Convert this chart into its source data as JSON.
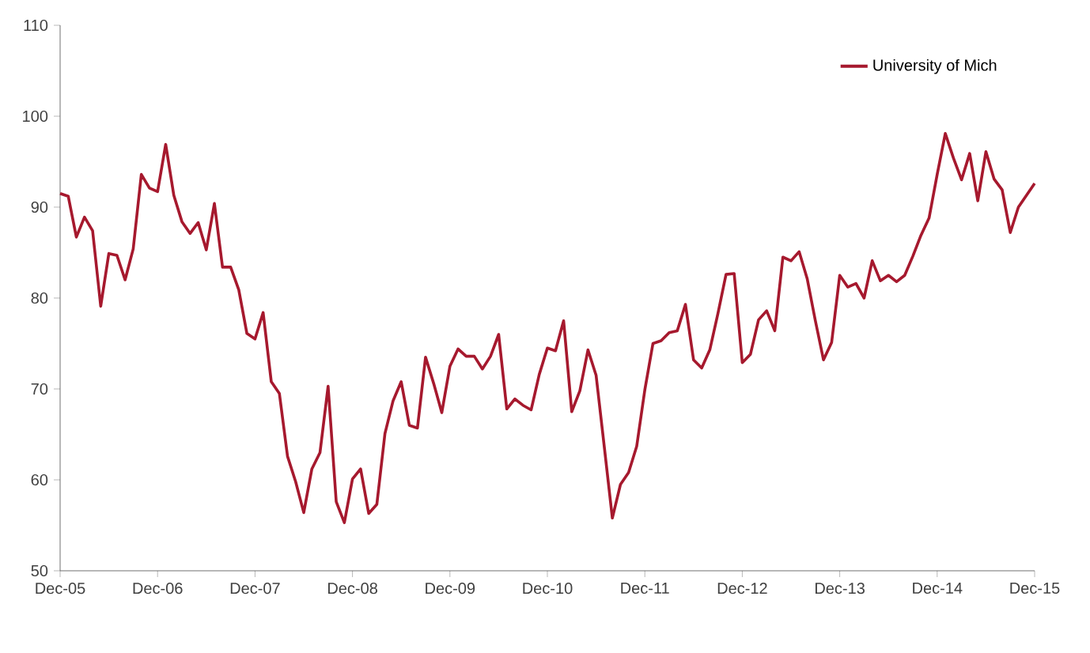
{
  "chart_data": {
    "type": "line",
    "x": [
      "2005-12",
      "2006-01",
      "2006-02",
      "2006-03",
      "2006-04",
      "2006-05",
      "2006-06",
      "2006-07",
      "2006-08",
      "2006-09",
      "2006-10",
      "2006-11",
      "2006-12",
      "2007-01",
      "2007-02",
      "2007-03",
      "2007-04",
      "2007-05",
      "2007-06",
      "2007-07",
      "2007-08",
      "2007-09",
      "2007-10",
      "2007-11",
      "2007-12",
      "2008-01",
      "2008-02",
      "2008-03",
      "2008-04",
      "2008-05",
      "2008-06",
      "2008-07",
      "2008-08",
      "2008-09",
      "2008-10",
      "2008-11",
      "2008-12",
      "2009-01",
      "2009-02",
      "2009-03",
      "2009-04",
      "2009-05",
      "2009-06",
      "2009-07",
      "2009-08",
      "2009-09",
      "2009-10",
      "2009-11",
      "2009-12",
      "2010-01",
      "2010-02",
      "2010-03",
      "2010-04",
      "2010-05",
      "2010-06",
      "2010-07",
      "2010-08",
      "2010-09",
      "2010-10",
      "2010-11",
      "2010-12",
      "2011-01",
      "2011-02",
      "2011-03",
      "2011-04",
      "2011-05",
      "2011-06",
      "2011-07",
      "2011-08",
      "2011-09",
      "2011-10",
      "2011-11",
      "2011-12",
      "2012-01",
      "2012-02",
      "2012-03",
      "2012-04",
      "2012-05",
      "2012-06",
      "2012-07",
      "2012-08",
      "2012-09",
      "2012-10",
      "2012-11",
      "2012-12",
      "2013-01",
      "2013-02",
      "2013-03",
      "2013-04",
      "2013-05",
      "2013-06",
      "2013-07",
      "2013-08",
      "2013-09",
      "2013-10",
      "2013-11",
      "2013-12",
      "2014-01",
      "2014-02",
      "2014-03",
      "2014-04",
      "2014-05",
      "2014-06",
      "2014-07",
      "2014-08",
      "2014-09",
      "2014-10",
      "2014-11",
      "2014-12",
      "2015-01",
      "2015-02",
      "2015-03",
      "2015-04",
      "2015-05",
      "2015-06",
      "2015-07",
      "2015-08",
      "2015-09",
      "2015-10",
      "2015-11",
      "2015-12"
    ],
    "series": [
      {
        "name": "University of Mich",
        "color": "#a6192e",
        "values": [
          91.5,
          91.2,
          86.7,
          88.9,
          87.4,
          79.1,
          84.9,
          84.7,
          82.0,
          85.4,
          93.6,
          92.1,
          91.7,
          96.9,
          91.3,
          88.4,
          87.1,
          88.3,
          85.3,
          90.4,
          83.4,
          83.4,
          80.9,
          76.1,
          75.5,
          78.4,
          70.8,
          69.5,
          62.6,
          59.8,
          56.4,
          61.2,
          63.0,
          70.3,
          57.6,
          55.3,
          60.1,
          61.2,
          56.3,
          57.3,
          65.1,
          68.7,
          70.8,
          66.0,
          65.7,
          73.5,
          70.6,
          67.4,
          72.5,
          74.4,
          73.6,
          73.6,
          72.2,
          73.6,
          76.0,
          67.8,
          68.9,
          68.2,
          67.7,
          71.6,
          74.5,
          74.2,
          77.5,
          67.5,
          69.8,
          74.3,
          71.5,
          63.7,
          55.8,
          59.5,
          60.8,
          63.7,
          69.9,
          75.0,
          75.3,
          76.2,
          76.4,
          79.3,
          73.2,
          72.3,
          74.3,
          78.3,
          82.6,
          82.7,
          72.9,
          73.8,
          77.6,
          78.6,
          76.4,
          84.5,
          84.1,
          85.1,
          82.1,
          77.5,
          73.2,
          75.1,
          82.5,
          81.2,
          81.6,
          80.0,
          84.1,
          81.9,
          82.5,
          81.8,
          82.5,
          84.6,
          86.9,
          88.8,
          93.6,
          98.1,
          95.4,
          93.0,
          95.9,
          90.7,
          96.1,
          93.1,
          91.9,
          87.2,
          90.0,
          91.3,
          92.6
        ]
      }
    ],
    "xlim": [
      "2005-12",
      "2015-12"
    ],
    "xticks": [
      {
        "value": "2005-12",
        "label": "Dec-05"
      },
      {
        "value": "2006-12",
        "label": "Dec-06"
      },
      {
        "value": "2007-12",
        "label": "Dec-07"
      },
      {
        "value": "2008-12",
        "label": "Dec-08"
      },
      {
        "value": "2009-12",
        "label": "Dec-09"
      },
      {
        "value": "2010-12",
        "label": "Dec-10"
      },
      {
        "value": "2011-12",
        "label": "Dec-11"
      },
      {
        "value": "2012-12",
        "label": "Dec-12"
      },
      {
        "value": "2013-12",
        "label": "Dec-13"
      },
      {
        "value": "2014-12",
        "label": "Dec-14"
      },
      {
        "value": "2015-12",
        "label": "Dec-15"
      }
    ],
    "ylim": [
      50,
      110
    ],
    "yticks": [
      50,
      60,
      70,
      80,
      90,
      100,
      110
    ],
    "legend": "top right",
    "marker": "none",
    "line_style": "solid"
  }
}
